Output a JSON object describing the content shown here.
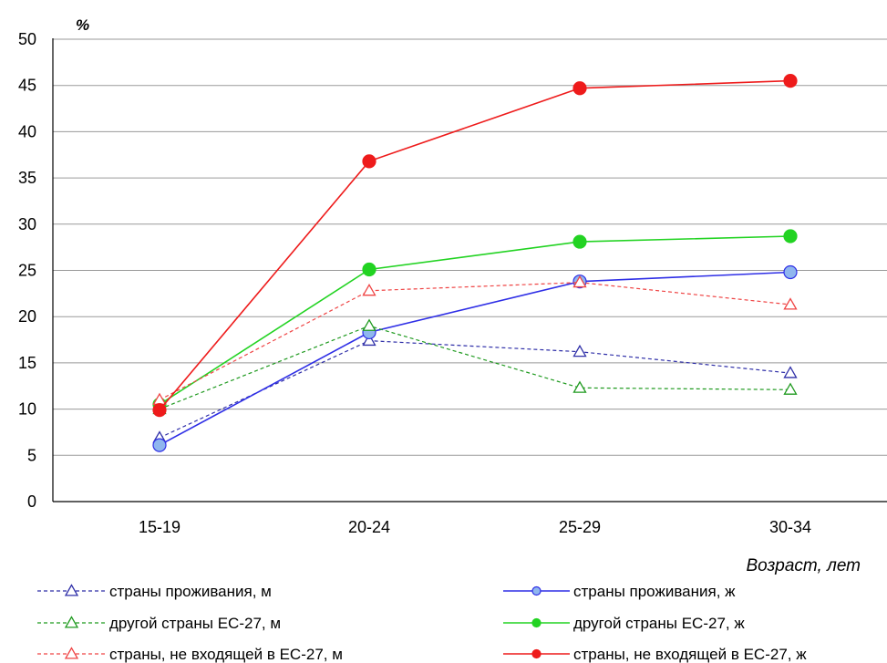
{
  "chart_data": {
    "type": "line",
    "ylabel": "%",
    "xlabel": "Возраст, лет",
    "ylim": [
      0,
      50
    ],
    "yticks": [
      "0",
      "5",
      "10",
      "15",
      "20",
      "25",
      "30",
      "35",
      "40",
      "45",
      "50"
    ],
    "categories": [
      "15-19",
      "20-24",
      "25-29",
      "30-34"
    ],
    "grid": "horizontal",
    "legend": "bottom",
    "series": [
      {
        "name": "страны проживания, м",
        "values": [
          6.9,
          17.4,
          16.2,
          13.9
        ],
        "color": "#2f2fa8",
        "dashed": true,
        "marker": "triangle-open"
      },
      {
        "name": "страны проживания, ж",
        "values": [
          6.1,
          18.3,
          23.8,
          24.8
        ],
        "color": "#2e2ee6",
        "dashed": false,
        "marker": "circle-filled",
        "marker_fill": "#8fb6ee"
      },
      {
        "name": "другой страны ЕС-27,  м",
        "values": [
          10.0,
          19.0,
          12.3,
          12.1
        ],
        "color": "#1f9a1f",
        "dashed": true,
        "marker": "triangle-open"
      },
      {
        "name": "другой страны ЕС-27,  ж",
        "values": [
          10.5,
          25.1,
          28.1,
          28.7
        ],
        "color": "#22d322",
        "dashed": false,
        "marker": "circle-filled",
        "marker_fill": "#22d322"
      },
      {
        "name": "страны, не входящей в ЕС-27,  м",
        "values": [
          11.0,
          22.8,
          23.7,
          21.3
        ],
        "color": "#ef4444",
        "dashed": true,
        "marker": "triangle-open"
      },
      {
        "name": "страны, не входящей в ЕС-27,  ж",
        "values": [
          9.9,
          36.8,
          44.7,
          45.5
        ],
        "color": "#ee1b1b",
        "dashed": false,
        "marker": "circle-filled",
        "marker_fill": "#ee1b1b"
      }
    ]
  }
}
